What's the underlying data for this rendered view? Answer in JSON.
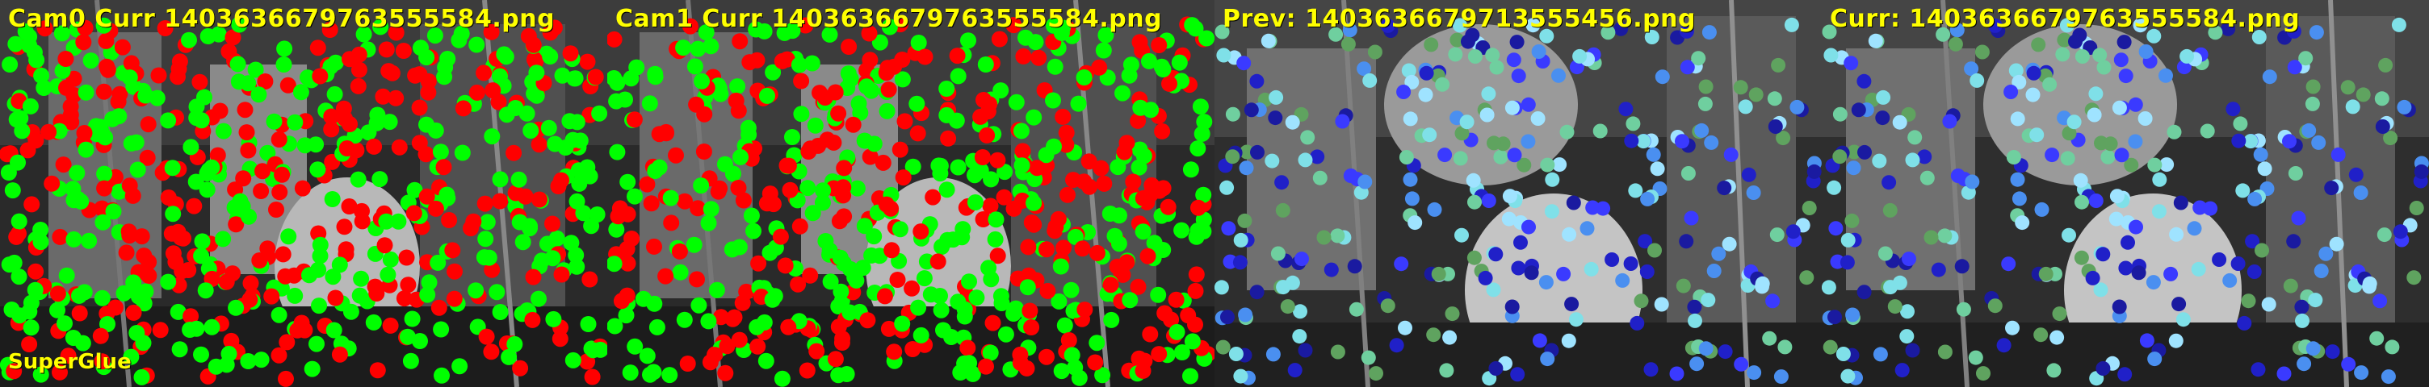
{
  "panels": [
    {
      "title": "Cam0 Curr 1403636679763555584.png",
      "scheme": "match",
      "seed": 11
    },
    {
      "title": "Cam1 Curr 1403636679763555584.png",
      "scheme": "match",
      "seed": 23
    },
    {
      "title": "Prev: 1403636679713555456.png",
      "scheme": "track",
      "seed": 37
    },
    {
      "title": "Curr: 1403636679763555584.png",
      "scheme": "track",
      "seed": 37
    }
  ],
  "footer_label": "SuperGlue",
  "colors": {
    "title": "#ffff00",
    "matched": "#00ff00",
    "unmatched": "#ff0000",
    "track_palette": [
      "#2020c8",
      "#1a1aa0",
      "#3a3aff",
      "#5fa35f",
      "#6fcf9f",
      "#7fe0e8",
      "#4a8ff0",
      "#9fe3ff"
    ]
  }
}
